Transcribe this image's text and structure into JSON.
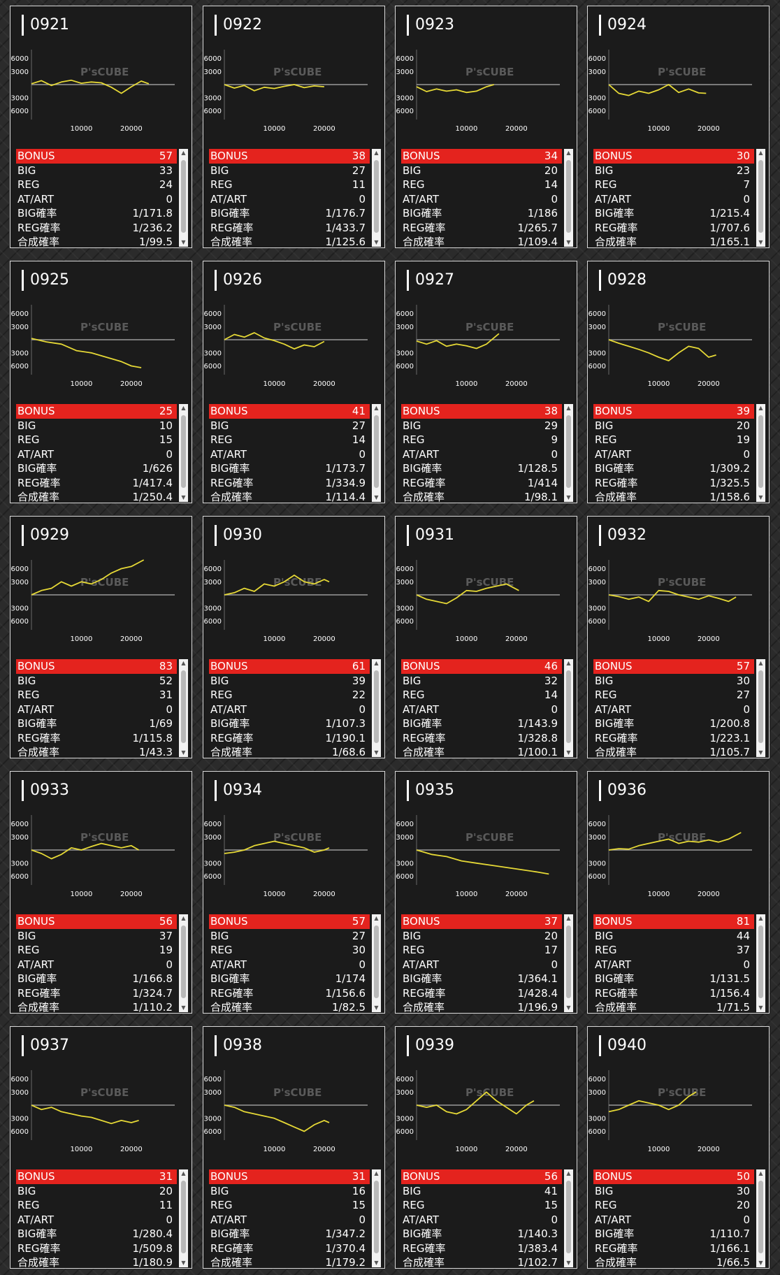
{
  "colors": {
    "line": "#e6d936",
    "bonus_bar": "#e4231e",
    "panel": "#1b1b1b",
    "zero_line": "#9a9a9a"
  },
  "labels": {
    "bonus": "BONUS",
    "big": "BIG",
    "reg": "REG",
    "at": "AT/ART",
    "big_rate": "BIG確率",
    "reg_rate": "REG確率",
    "combined_rate": "合成確率"
  },
  "watermark": "P'sCUBE",
  "chart_data": [
    {
      "title": "0921",
      "type": "line",
      "yticks": [
        6000,
        3000,
        -3000,
        -6000
      ],
      "xticks": [
        10000,
        20000
      ],
      "ylim": [
        -8000,
        8000
      ],
      "xlim": [
        0,
        28000
      ],
      "x": [
        0,
        2000,
        4000,
        6000,
        8000,
        10000,
        12000,
        14000,
        16000,
        18000,
        20000,
        22000,
        23500
      ],
      "y": [
        200,
        900,
        -200,
        600,
        1000,
        300,
        600,
        400,
        -600,
        -2000,
        -500,
        800,
        200
      ],
      "stats": {
        "bonus": "57",
        "big": "33",
        "reg": "24",
        "at": "0",
        "big_rate": "1/171.8",
        "reg_rate": "1/236.2",
        "combined_rate": "1/99.5"
      }
    },
    {
      "title": "0922",
      "type": "line",
      "yticks": [
        6000,
        3000,
        -3000,
        -6000
      ],
      "xticks": [
        10000,
        20000
      ],
      "ylim": [
        -8000,
        8000
      ],
      "xlim": [
        0,
        28000
      ],
      "x": [
        0,
        2000,
        4000,
        6000,
        8000,
        10000,
        12000,
        14000,
        16000,
        18000,
        20000
      ],
      "y": [
        0,
        -800,
        -200,
        -1400,
        -600,
        -900,
        -400,
        0,
        -700,
        -300,
        -500
      ],
      "stats": {
        "bonus": "38",
        "big": "27",
        "reg": "11",
        "at": "0",
        "big_rate": "1/176.7",
        "reg_rate": "1/433.7",
        "combined_rate": "1/125.6"
      }
    },
    {
      "title": "0923",
      "type": "line",
      "yticks": [
        6000,
        3000,
        -3000,
        -6000
      ],
      "xticks": [
        10000,
        20000
      ],
      "ylim": [
        -8000,
        8000
      ],
      "xlim": [
        0,
        28000
      ],
      "x": [
        0,
        2000,
        4000,
        6000,
        8000,
        10000,
        12000,
        14000,
        15500
      ],
      "y": [
        -500,
        -1600,
        -1000,
        -1500,
        -1200,
        -1800,
        -1500,
        -500,
        0
      ],
      "stats": {
        "bonus": "34",
        "big": "20",
        "reg": "14",
        "at": "0",
        "big_rate": "1/186",
        "reg_rate": "1/265.7",
        "combined_rate": "1/109.4"
      }
    },
    {
      "title": "0924",
      "type": "line",
      "yticks": [
        6000,
        3000,
        -3000,
        -6000
      ],
      "xticks": [
        10000,
        20000
      ],
      "ylim": [
        -8000,
        8000
      ],
      "xlim": [
        0,
        28000
      ],
      "x": [
        0,
        2000,
        4000,
        6000,
        8000,
        10000,
        12000,
        14000,
        16000,
        18000,
        19500
      ],
      "y": [
        0,
        -2000,
        -2500,
        -1500,
        -2000,
        -1200,
        0,
        -1800,
        -1000,
        -1900,
        -2000
      ],
      "stats": {
        "bonus": "30",
        "big": "23",
        "reg": "7",
        "at": "0",
        "big_rate": "1/215.4",
        "reg_rate": "1/707.6",
        "combined_rate": "1/165.1"
      }
    },
    {
      "title": "0925",
      "type": "line",
      "yticks": [
        6000,
        3000,
        -3000,
        -6000
      ],
      "xticks": [
        10000,
        20000
      ],
      "ylim": [
        -8000,
        8000
      ],
      "xlim": [
        0,
        28000
      ],
      "x": [
        0,
        3000,
        6000,
        9000,
        12000,
        15000,
        18000,
        20000,
        22000
      ],
      "y": [
        300,
        -500,
        -1000,
        -2500,
        -3000,
        -4000,
        -5000,
        -6000,
        -6400
      ],
      "stats": {
        "bonus": "25",
        "big": "10",
        "reg": "15",
        "at": "0",
        "big_rate": "1/626",
        "reg_rate": "1/417.4",
        "combined_rate": "1/250.4"
      }
    },
    {
      "title": "0926",
      "type": "line",
      "yticks": [
        6000,
        3000,
        -3000,
        -6000
      ],
      "xticks": [
        10000,
        20000
      ],
      "ylim": [
        -8000,
        8000
      ],
      "xlim": [
        0,
        28000
      ],
      "x": [
        0,
        2000,
        4000,
        6000,
        8000,
        10000,
        12000,
        14000,
        16000,
        18000,
        20000
      ],
      "y": [
        0,
        1200,
        600,
        1600,
        400,
        -200,
        -1000,
        -2100,
        -1200,
        -1600,
        -400
      ],
      "stats": {
        "bonus": "41",
        "big": "27",
        "reg": "14",
        "at": "0",
        "big_rate": "1/173.7",
        "reg_rate": "1/334.9",
        "combined_rate": "1/114.4"
      }
    },
    {
      "title": "0927",
      "type": "line",
      "yticks": [
        6000,
        3000,
        -3000,
        -6000
      ],
      "xticks": [
        10000,
        20000
      ],
      "ylim": [
        -8000,
        8000
      ],
      "xlim": [
        0,
        28000
      ],
      "x": [
        0,
        2000,
        4000,
        6000,
        8000,
        10000,
        12000,
        14000,
        16500
      ],
      "y": [
        -300,
        -1000,
        -200,
        -1500,
        -1000,
        -1400,
        -2000,
        -1000,
        1400
      ],
      "stats": {
        "bonus": "38",
        "big": "29",
        "reg": "9",
        "at": "0",
        "big_rate": "1/128.5",
        "reg_rate": "1/414",
        "combined_rate": "1/98.1"
      }
    },
    {
      "title": "0928",
      "type": "line",
      "yticks": [
        6000,
        3000,
        -3000,
        -6000
      ],
      "xticks": [
        10000,
        20000
      ],
      "ylim": [
        -8000,
        8000
      ],
      "xlim": [
        0,
        28000
      ],
      "x": [
        0,
        2000,
        4000,
        6000,
        8000,
        10000,
        12000,
        14000,
        16000,
        18000,
        20000,
        21500
      ],
      "y": [
        0,
        -800,
        -1500,
        -2200,
        -3000,
        -4000,
        -4800,
        -3000,
        -1500,
        -2000,
        -4000,
        -3500
      ],
      "stats": {
        "bonus": "39",
        "big": "20",
        "reg": "19",
        "at": "0",
        "big_rate": "1/309.2",
        "reg_rate": "1/325.5",
        "combined_rate": "1/158.6"
      }
    },
    {
      "title": "0929",
      "type": "line",
      "yticks": [
        6000,
        3000,
        -3000,
        -6000
      ],
      "xticks": [
        10000,
        20000
      ],
      "ylim": [
        -8000,
        8000
      ],
      "xlim": [
        0,
        28000
      ],
      "x": [
        0,
        2000,
        4000,
        6000,
        8000,
        10000,
        12000,
        14000,
        16000,
        18000,
        20000,
        22500
      ],
      "y": [
        0,
        1000,
        1500,
        3000,
        2000,
        3000,
        2500,
        3500,
        5000,
        6000,
        6500,
        8000
      ],
      "stats": {
        "bonus": "83",
        "big": "52",
        "reg": "31",
        "at": "0",
        "big_rate": "1/69",
        "reg_rate": "1/115.8",
        "combined_rate": "1/43.3"
      }
    },
    {
      "title": "0930",
      "type": "line",
      "yticks": [
        6000,
        3000,
        -3000,
        -6000
      ],
      "xticks": [
        10000,
        20000
      ],
      "ylim": [
        -8000,
        8000
      ],
      "xlim": [
        0,
        28000
      ],
      "x": [
        0,
        2000,
        4000,
        6000,
        8000,
        10000,
        12000,
        14000,
        16000,
        18000,
        20000,
        21000
      ],
      "y": [
        0,
        500,
        1500,
        800,
        2500,
        2000,
        3000,
        4500,
        3000,
        2500,
        3500,
        3000
      ],
      "stats": {
        "bonus": "61",
        "big": "39",
        "reg": "22",
        "at": "0",
        "big_rate": "1/107.3",
        "reg_rate": "1/190.1",
        "combined_rate": "1/68.6"
      }
    },
    {
      "title": "0931",
      "type": "line",
      "yticks": [
        6000,
        3000,
        -3000,
        -6000
      ],
      "xticks": [
        10000,
        20000
      ],
      "ylim": [
        -8000,
        8000
      ],
      "xlim": [
        0,
        28000
      ],
      "x": [
        0,
        2000,
        4000,
        6000,
        8000,
        10000,
        12000,
        14000,
        16000,
        18000,
        20500
      ],
      "y": [
        0,
        -1000,
        -1500,
        -2000,
        -700,
        1000,
        800,
        1500,
        2000,
        2500,
        1000
      ],
      "stats": {
        "bonus": "46",
        "big": "32",
        "reg": "14",
        "at": "0",
        "big_rate": "1/143.9",
        "reg_rate": "1/328.8",
        "combined_rate": "1/100.1"
      }
    },
    {
      "title": "0932",
      "type": "line",
      "yticks": [
        6000,
        3000,
        -3000,
        -6000
      ],
      "xticks": [
        10000,
        20000
      ],
      "ylim": [
        -8000,
        8000
      ],
      "xlim": [
        0,
        28000
      ],
      "x": [
        0,
        2000,
        4000,
        6000,
        8000,
        10000,
        12000,
        14000,
        16000,
        18000,
        20000,
        22000,
        24000,
        25500
      ],
      "y": [
        0,
        -400,
        -1000,
        -500,
        -1500,
        1000,
        800,
        0,
        -500,
        -1000,
        -200,
        -800,
        -1500,
        -500
      ],
      "stats": {
        "bonus": "57",
        "big": "30",
        "reg": "27",
        "at": "0",
        "big_rate": "1/200.8",
        "reg_rate": "1/223.1",
        "combined_rate": "1/105.7"
      }
    },
    {
      "title": "0933",
      "type": "line",
      "yticks": [
        6000,
        3000,
        -3000,
        -6000
      ],
      "xticks": [
        10000,
        20000
      ],
      "ylim": [
        -8000,
        8000
      ],
      "xlim": [
        0,
        28000
      ],
      "x": [
        0,
        2000,
        4000,
        6000,
        8000,
        10000,
        12000,
        14000,
        16000,
        18000,
        20000,
        21500
      ],
      "y": [
        0,
        -800,
        -2000,
        -1000,
        500,
        0,
        800,
        1500,
        1000,
        500,
        1000,
        0
      ],
      "stats": {
        "bonus": "56",
        "big": "37",
        "reg": "19",
        "at": "0",
        "big_rate": "1/166.8",
        "reg_rate": "1/324.7",
        "combined_rate": "1/110.2"
      }
    },
    {
      "title": "0934",
      "type": "line",
      "yticks": [
        6000,
        3000,
        -3000,
        -6000
      ],
      "xticks": [
        10000,
        20000
      ],
      "ylim": [
        -8000,
        8000
      ],
      "xlim": [
        0,
        28000
      ],
      "x": [
        0,
        2000,
        4000,
        6000,
        8000,
        10000,
        12000,
        14000,
        16000,
        18000,
        20000,
        21000
      ],
      "y": [
        -800,
        -500,
        0,
        1000,
        1500,
        2000,
        1500,
        1000,
        500,
        -500,
        0,
        500
      ],
      "stats": {
        "bonus": "57",
        "big": "27",
        "reg": "30",
        "at": "0",
        "big_rate": "1/174",
        "reg_rate": "1/156.6",
        "combined_rate": "1/82.5"
      }
    },
    {
      "title": "0935",
      "type": "line",
      "yticks": [
        6000,
        3000,
        -3000,
        -6000
      ],
      "xticks": [
        10000,
        20000
      ],
      "ylim": [
        -8000,
        8000
      ],
      "xlim": [
        0,
        28000
      ],
      "x": [
        0,
        3000,
        6000,
        9000,
        12000,
        15000,
        18000,
        21000,
        24000,
        26500
      ],
      "y": [
        0,
        -1000,
        -1500,
        -2500,
        -3000,
        -3500,
        -4000,
        -4500,
        -5000,
        -5500
      ],
      "stats": {
        "bonus": "37",
        "big": "20",
        "reg": "17",
        "at": "0",
        "big_rate": "1/364.1",
        "reg_rate": "1/428.4",
        "combined_rate": "1/196.9"
      }
    },
    {
      "title": "0936",
      "type": "line",
      "yticks": [
        6000,
        3000,
        -3000,
        -6000
      ],
      "xticks": [
        10000,
        20000
      ],
      "ylim": [
        -8000,
        8000
      ],
      "xlim": [
        0,
        28000
      ],
      "x": [
        0,
        2000,
        4000,
        6000,
        8000,
        10000,
        12000,
        14000,
        16000,
        18000,
        20000,
        22000,
        24000,
        26500
      ],
      "y": [
        0,
        300,
        200,
        1000,
        1500,
        2000,
        2500,
        1500,
        2000,
        1800,
        2300,
        1800,
        2500,
        4000
      ],
      "stats": {
        "bonus": "81",
        "big": "44",
        "reg": "37",
        "at": "0",
        "big_rate": "1/131.5",
        "reg_rate": "1/156.4",
        "combined_rate": "1/71.5"
      }
    },
    {
      "title": "0937",
      "type": "line",
      "yticks": [
        6000,
        3000,
        -3000,
        -6000
      ],
      "xticks": [
        10000,
        20000
      ],
      "ylim": [
        -8000,
        8000
      ],
      "xlim": [
        0,
        28000
      ],
      "x": [
        0,
        2000,
        4000,
        6000,
        8000,
        10000,
        12000,
        14000,
        16000,
        18000,
        20000,
        21500
      ],
      "y": [
        0,
        -1000,
        -500,
        -1500,
        -2000,
        -2500,
        -2800,
        -3500,
        -4200,
        -3500,
        -4000,
        -3500
      ],
      "stats": {
        "bonus": "31",
        "big": "20",
        "reg": "11",
        "at": "0",
        "big_rate": "1/280.4",
        "reg_rate": "1/509.8",
        "combined_rate": "1/180.9"
      }
    },
    {
      "title": "0938",
      "type": "line",
      "yticks": [
        6000,
        3000,
        -3000,
        -6000
      ],
      "xticks": [
        10000,
        20000
      ],
      "ylim": [
        -8000,
        8000
      ],
      "xlim": [
        0,
        28000
      ],
      "x": [
        0,
        2000,
        4000,
        6000,
        8000,
        10000,
        12000,
        14000,
        16000,
        18000,
        20000,
        21000
      ],
      "y": [
        0,
        -500,
        -1500,
        -2000,
        -2500,
        -3000,
        -4000,
        -5000,
        -6000,
        -4500,
        -3500,
        -4000
      ],
      "stats": {
        "bonus": "31",
        "big": "16",
        "reg": "15",
        "at": "0",
        "big_rate": "1/347.2",
        "reg_rate": "1/370.4",
        "combined_rate": "1/179.2"
      }
    },
    {
      "title": "0939",
      "type": "line",
      "yticks": [
        6000,
        3000,
        -3000,
        -6000
      ],
      "xticks": [
        10000,
        20000
      ],
      "ylim": [
        -8000,
        8000
      ],
      "xlim": [
        0,
        28000
      ],
      "x": [
        0,
        2000,
        4000,
        6000,
        8000,
        10000,
        12000,
        14000,
        16000,
        18000,
        20000,
        22000,
        23500
      ],
      "y": [
        0,
        -500,
        0,
        -1500,
        -2000,
        -1000,
        1000,
        3000,
        1000,
        -500,
        -2000,
        0,
        1000
      ],
      "stats": {
        "bonus": "56",
        "big": "41",
        "reg": "15",
        "at": "0",
        "big_rate": "1/140.3",
        "reg_rate": "1/383.4",
        "combined_rate": "1/102.7"
      }
    },
    {
      "title": "0940",
      "type": "line",
      "yticks": [
        6000,
        3000,
        -3000,
        -6000
      ],
      "xticks": [
        10000,
        20000
      ],
      "ylim": [
        -8000,
        8000
      ],
      "xlim": [
        0,
        28000
      ],
      "x": [
        0,
        2000,
        4000,
        6000,
        8000,
        10000,
        12000,
        14000,
        16000,
        17500
      ],
      "y": [
        -1500,
        -1000,
        0,
        1000,
        500,
        0,
        -1000,
        0,
        2000,
        3000
      ],
      "stats": {
        "bonus": "50",
        "big": "30",
        "reg": "20",
        "at": "0",
        "big_rate": "1/110.7",
        "reg_rate": "1/166.1",
        "combined_rate": "1/66.5"
      }
    }
  ]
}
